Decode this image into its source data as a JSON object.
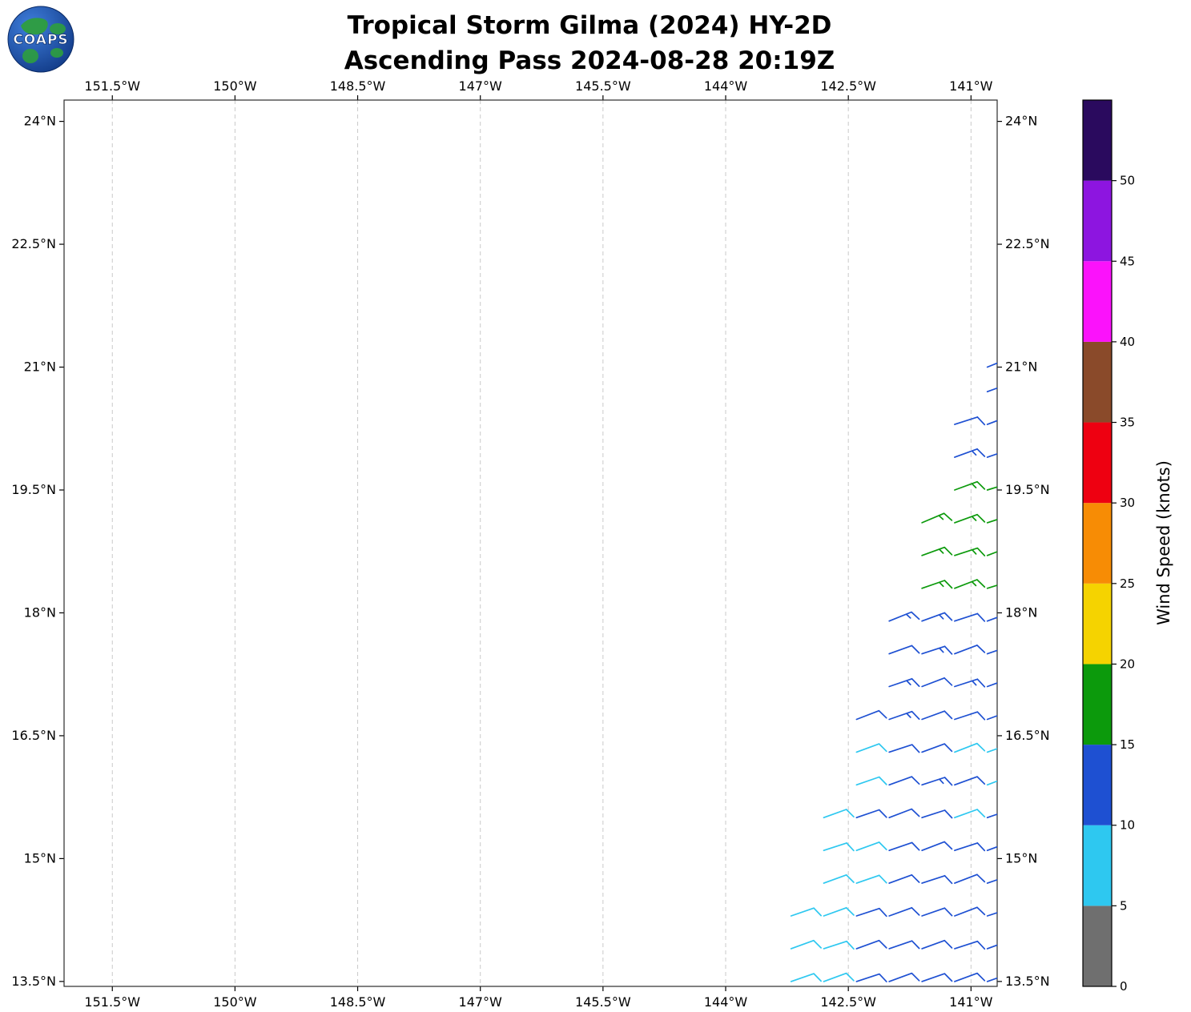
{
  "header": {
    "logo_text": "COAPS",
    "title_line1": "Tropical Storm Gilma (2024) HY-2D",
    "title_line2": "Ascending Pass 2024-08-28 20:19Z"
  },
  "chart_data": {
    "type": "barb",
    "title": "Tropical Storm Gilma (2024) HY-2D",
    "subtitle": "Ascending Pass 2024-08-28 20:19Z",
    "xlabel": "Longitude",
    "ylabel": "Latitude",
    "xlim": [
      -152.09,
      -140.68
    ],
    "ylim": [
      13.44,
      24.26
    ],
    "grid": "dashed",
    "x_ticks": [
      {
        "value": -151.5,
        "label": "151.5°W"
      },
      {
        "value": -150.0,
        "label": "150°W"
      },
      {
        "value": -148.5,
        "label": "148.5°W"
      },
      {
        "value": -147.0,
        "label": "147°W"
      },
      {
        "value": -145.5,
        "label": "145.5°W"
      },
      {
        "value": -144.0,
        "label": "144°W"
      },
      {
        "value": -142.5,
        "label": "142.5°W"
      },
      {
        "value": -141.0,
        "label": "141°W"
      }
    ],
    "y_ticks": [
      {
        "value": 24.0,
        "label": "24°N"
      },
      {
        "value": 22.5,
        "label": "22.5°N"
      },
      {
        "value": 21.0,
        "label": "21°N"
      },
      {
        "value": 19.5,
        "label": "19.5°N"
      },
      {
        "value": 18.0,
        "label": "18°N"
      },
      {
        "value": 16.5,
        "label": "16.5°N"
      },
      {
        "value": 15.0,
        "label": "15°N"
      },
      {
        "value": 13.5,
        "label": "13.5°N"
      }
    ],
    "colorbar": {
      "label": "Wind Speed (knots)",
      "units": "knots",
      "min": 0,
      "max": 55,
      "tick_values": [
        0,
        5,
        10,
        15,
        20,
        25,
        30,
        35,
        40,
        45,
        50
      ],
      "segments": [
        {
          "from": 0,
          "to": 5,
          "color": "#6f6f6f"
        },
        {
          "from": 5,
          "to": 10,
          "color": "#2ec8f0"
        },
        {
          "from": 10,
          "to": 15,
          "color": "#1e50d2"
        },
        {
          "from": 15,
          "to": 20,
          "color": "#0c9a0c"
        },
        {
          "from": 20,
          "to": 25,
          "color": "#f5d300"
        },
        {
          "from": 25,
          "to": 30,
          "color": "#f78c05"
        },
        {
          "from": 30,
          "to": 35,
          "color": "#ee0011"
        },
        {
          "from": 35,
          "to": 40,
          "color": "#8a4a2a"
        },
        {
          "from": 40,
          "to": 45,
          "color": "#fb12fb"
        },
        {
          "from": 45,
          "to": 50,
          "color": "#8d15e0"
        },
        {
          "from": 50,
          "to": 55,
          "color": "#2a0a5e"
        }
      ]
    },
    "barbs": [
      [
        -140.8,
        21.0,
        12,
        68
      ],
      [
        -140.8,
        20.7,
        12,
        70
      ],
      [
        -141.2,
        20.3,
        12,
        72
      ],
      [
        -140.8,
        20.3,
        13,
        69
      ],
      [
        -141.2,
        19.9,
        13,
        70
      ],
      [
        -140.8,
        19.9,
        12,
        71
      ],
      [
        -141.2,
        19.5,
        16,
        70
      ],
      [
        -140.8,
        19.5,
        16,
        73
      ],
      [
        -141.6,
        19.1,
        16,
        67
      ],
      [
        -141.2,
        19.1,
        17,
        70
      ],
      [
        -140.8,
        19.1,
        16,
        72
      ],
      [
        -141.6,
        18.7,
        17,
        70
      ],
      [
        -141.2,
        18.7,
        16,
        72
      ],
      [
        -140.8,
        18.7,
        17,
        69
      ],
      [
        -141.6,
        18.3,
        16,
        71
      ],
      [
        -141.2,
        18.3,
        17,
        69
      ],
      [
        -140.8,
        18.3,
        16,
        73
      ],
      [
        -142.0,
        17.9,
        13,
        68
      ],
      [
        -141.6,
        17.9,
        13,
        70
      ],
      [
        -141.2,
        17.9,
        12,
        72
      ],
      [
        -140.8,
        17.9,
        13,
        70
      ],
      [
        -142.0,
        17.5,
        12,
        70
      ],
      [
        -141.6,
        17.5,
        13,
        72
      ],
      [
        -141.2,
        17.5,
        12,
        69
      ],
      [
        -140.8,
        17.5,
        12,
        71
      ],
      [
        -142.0,
        17.1,
        13,
        71
      ],
      [
        -141.6,
        17.1,
        12,
        69
      ],
      [
        -141.2,
        17.1,
        13,
        72
      ],
      [
        -140.8,
        17.1,
        12,
        70
      ],
      [
        -142.4,
        16.7,
        12,
        69
      ],
      [
        -142.0,
        16.7,
        13,
        71
      ],
      [
        -141.6,
        16.7,
        12,
        70
      ],
      [
        -141.2,
        16.7,
        12,
        72
      ],
      [
        -140.8,
        16.7,
        13,
        70
      ],
      [
        -142.4,
        16.3,
        9,
        70
      ],
      [
        -142.0,
        16.3,
        12,
        72
      ],
      [
        -141.6,
        16.3,
        12,
        70
      ],
      [
        -141.2,
        16.3,
        9,
        69
      ],
      [
        -140.8,
        16.3,
        9,
        71
      ],
      [
        -142.4,
        15.9,
        9,
        71
      ],
      [
        -142.0,
        15.9,
        12,
        70
      ],
      [
        -141.6,
        15.9,
        13,
        72
      ],
      [
        -141.2,
        15.9,
        12,
        70
      ],
      [
        -140.8,
        15.9,
        9,
        69
      ],
      [
        -142.8,
        15.5,
        9,
        70
      ],
      [
        -142.4,
        15.5,
        12,
        71
      ],
      [
        -142.0,
        15.5,
        12,
        69
      ],
      [
        -141.6,
        15.5,
        12,
        72
      ],
      [
        -141.2,
        15.5,
        9,
        70
      ],
      [
        -140.8,
        15.5,
        12,
        71
      ],
      [
        -142.8,
        15.1,
        9,
        72
      ],
      [
        -142.4,
        15.1,
        9,
        70
      ],
      [
        -142.0,
        15.1,
        12,
        71
      ],
      [
        -141.6,
        15.1,
        12,
        69
      ],
      [
        -141.2,
        15.1,
        12,
        72
      ],
      [
        -140.8,
        15.1,
        12,
        70
      ],
      [
        -142.8,
        14.7,
        8,
        70
      ],
      [
        -142.4,
        14.7,
        9,
        71
      ],
      [
        -142.0,
        14.7,
        12,
        70
      ],
      [
        -141.6,
        14.7,
        12,
        72
      ],
      [
        -141.2,
        14.7,
        12,
        69
      ],
      [
        -140.8,
        14.7,
        12,
        71
      ],
      [
        -143.2,
        14.3,
        8,
        71
      ],
      [
        -142.8,
        14.3,
        9,
        70
      ],
      [
        -142.4,
        14.3,
        12,
        72
      ],
      [
        -142.0,
        14.3,
        12,
        70
      ],
      [
        -141.6,
        14.3,
        12,
        71
      ],
      [
        -141.2,
        14.3,
        12,
        69
      ],
      [
        -140.8,
        14.3,
        12,
        72
      ],
      [
        -143.2,
        13.9,
        8,
        70
      ],
      [
        -142.8,
        13.9,
        9,
        72
      ],
      [
        -142.4,
        13.9,
        12,
        70
      ],
      [
        -142.0,
        13.9,
        12,
        71
      ],
      [
        -141.6,
        13.9,
        12,
        70
      ],
      [
        -141.2,
        13.9,
        12,
        72
      ],
      [
        -140.8,
        13.9,
        12,
        70
      ],
      [
        -143.2,
        13.5,
        8,
        71
      ],
      [
        -142.8,
        13.5,
        8,
        70
      ],
      [
        -142.4,
        13.5,
        12,
        72
      ],
      [
        -142.0,
        13.5,
        12,
        70
      ],
      [
        -141.6,
        13.5,
        12,
        71
      ],
      [
        -141.2,
        13.5,
        12,
        70
      ],
      [
        -140.8,
        13.5,
        12,
        71
      ]
    ]
  }
}
